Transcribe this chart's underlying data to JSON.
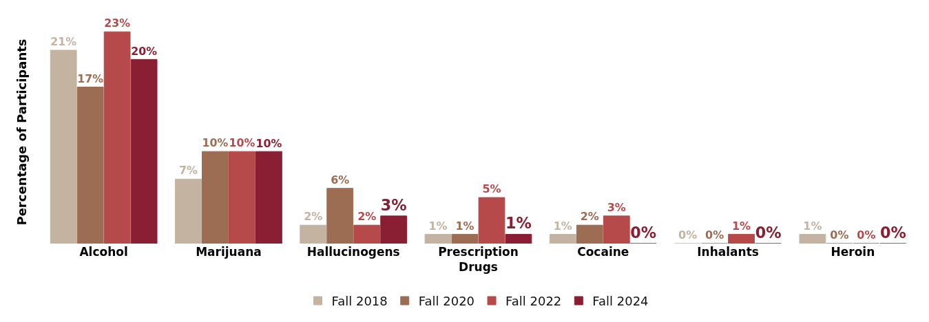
{
  "chart_data": {
    "type": "bar",
    "ylabel": "Percentage of Participants",
    "categories": [
      "Alcohol",
      "Marijuana",
      "Hallucinogens",
      "Prescription Drugs",
      "Cocaine",
      "Inhalants",
      "Heroin"
    ],
    "series": [
      {
        "name": "Fall 2018",
        "color": "#c4b3a1",
        "values": [
          21,
          7,
          2,
          1,
          1,
          0,
          1
        ],
        "value_labels": [
          "21%",
          "7%",
          "2%",
          "1%",
          "1%",
          "0%",
          "1%"
        ]
      },
      {
        "name": "Fall 2020",
        "color": "#9c6d52",
        "values": [
          17,
          10,
          6,
          1,
          2,
          0,
          0
        ],
        "value_labels": [
          "17%",
          "10%",
          "6%",
          "1%",
          "2%",
          "0%",
          "0%"
        ]
      },
      {
        "name": "Fall 2022",
        "color": "#b64a4a",
        "values": [
          23,
          10,
          2,
          5,
          3,
          1,
          0
        ],
        "value_labels": [
          "23%",
          "10%",
          "2%",
          "5%",
          "3%",
          "1%",
          "0%"
        ]
      },
      {
        "name": "Fall 2024",
        "color": "#8a1f33",
        "values": [
          20,
          10,
          3,
          1,
          0,
          0,
          0
        ],
        "value_labels": [
          "20%",
          "10%",
          "3%",
          "1%",
          "0%",
          "0%",
          "0%"
        ]
      }
    ],
    "legend": "bottom"
  }
}
